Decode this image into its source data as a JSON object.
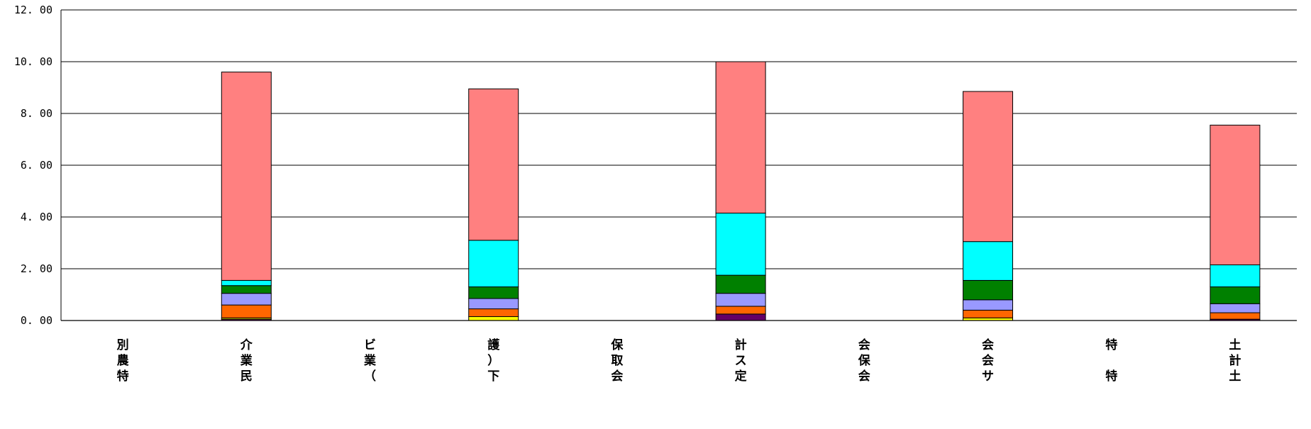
{
  "chart_data": {
    "type": "bar",
    "stacked": true,
    "title": "",
    "xlabel": "",
    "ylabel": "",
    "ylim": [
      0,
      12
    ],
    "yticks": [
      "0.00",
      "2.00",
      "4.00",
      "6.00",
      "8.00",
      "10.00",
      "12.00"
    ],
    "grid": true,
    "legend": "none",
    "categories": [
      "別\n農\n特",
      "介\n業\n民",
      "ビ\n業\n（",
      "護\n）\n下",
      "保\n取\n会",
      "計\nス\n定",
      "会\n保\n会",
      "会\n会\nサ",
      "特\n\n特",
      "土\n計\n土"
    ],
    "series": [
      {
        "color": "#660066",
        "values": [
          0,
          0.05,
          0,
          0,
          0,
          0.25,
          0,
          0,
          0,
          0.05
        ]
      },
      {
        "color": "#ffff00",
        "values": [
          0,
          0.05,
          0,
          0.15,
          0,
          0,
          0,
          0.1,
          0,
          0
        ]
      },
      {
        "color": "#ff6600",
        "values": [
          0,
          0.5,
          0,
          0.3,
          0,
          0.3,
          0,
          0.3,
          0,
          0.25
        ]
      },
      {
        "color": "#9999ff",
        "values": [
          0,
          0.45,
          0,
          0.4,
          0,
          0.5,
          0,
          0.4,
          0,
          0.35
        ]
      },
      {
        "color": "#008000",
        "values": [
          0,
          0.3,
          0,
          0.45,
          0,
          0.7,
          0,
          0.75,
          0,
          0.65
        ]
      },
      {
        "color": "#00ffff",
        "values": [
          0,
          0.2,
          0,
          1.8,
          0,
          2.4,
          0,
          1.5,
          0,
          0.85
        ]
      },
      {
        "color": "#ff8080",
        "values": [
          0,
          8.05,
          0,
          5.85,
          0,
          5.85,
          0,
          5.8,
          0,
          5.4
        ]
      }
    ]
  }
}
